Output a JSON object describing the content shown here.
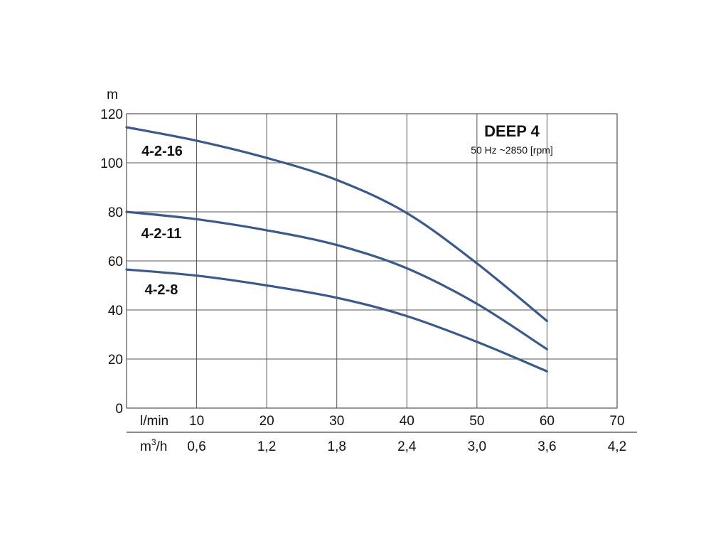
{
  "chart_data": {
    "type": "line",
    "title": "DEEP 4",
    "subtitle": "50 Hz ~2850 [rpm]",
    "ylabel": "m",
    "ylim": [
      0,
      120
    ],
    "yticks": [
      "0",
      "20",
      "40",
      "60",
      "80",
      "100",
      "120"
    ],
    "xlim": [
      0,
      70
    ],
    "x_primary": {
      "label": "l/min",
      "ticks": [
        "10",
        "20",
        "30",
        "40",
        "50",
        "60",
        "70"
      ]
    },
    "x_secondary": {
      "label_base": "m",
      "label_sup": "3",
      "label_tail": "/h",
      "ticks": [
        "0,6",
        "1,2",
        "1,8",
        "2,4",
        "3,0",
        "3,6",
        "4,2"
      ]
    },
    "grid": true,
    "line_color": "#3a5a8c",
    "series": [
      {
        "name": "4-2-16",
        "x": [
          0,
          10,
          20,
          30,
          40,
          50,
          60
        ],
        "y": [
          114.5,
          109,
          102,
          93,
          79.5,
          59,
          35.5
        ]
      },
      {
        "name": "4-2-11",
        "x": [
          0,
          10,
          20,
          30,
          40,
          50,
          60
        ],
        "y": [
          80,
          77,
          72.5,
          66.5,
          57,
          42.5,
          24
        ]
      },
      {
        "name": "4-2-8",
        "x": [
          0,
          10,
          20,
          30,
          40,
          50,
          60
        ],
        "y": [
          56.5,
          54,
          50,
          45,
          37.5,
          27,
          15
        ]
      }
    ]
  }
}
